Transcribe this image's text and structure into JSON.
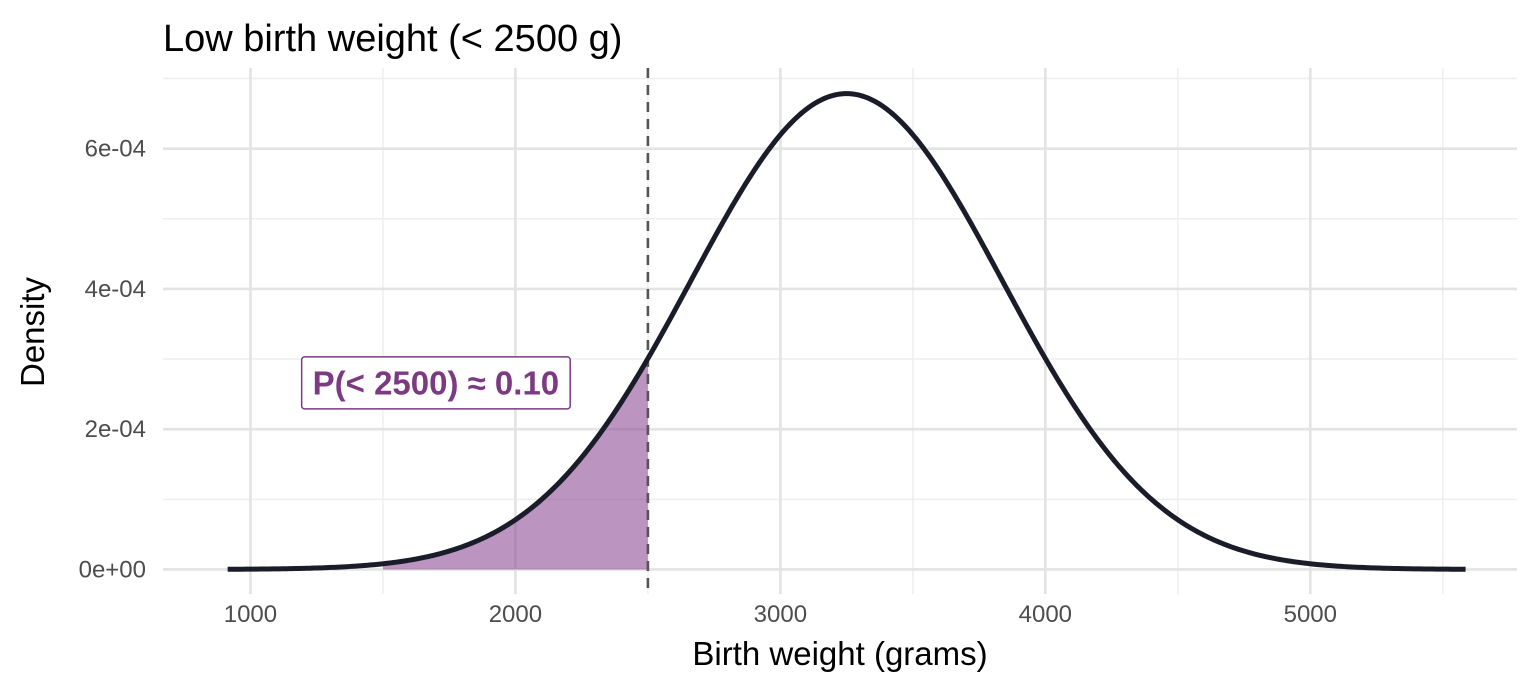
{
  "chart_data": {
    "type": "area",
    "title": "Low birth weight (< 2500 g)",
    "xlabel": "Birth weight (grams)",
    "ylabel": "Density",
    "xlim": [
      670,
      5780
    ],
    "ylim": [
      -3.5e-05,
      0.000715
    ],
    "x_ticks": [
      1000,
      2000,
      3000,
      4000,
      5000
    ],
    "x_tick_labels": [
      "1000",
      "2000",
      "3000",
      "4000",
      "5000"
    ],
    "x_minor_ticks": [
      1500,
      2500,
      3500,
      4500,
      5500
    ],
    "y_ticks": [
      0,
      0.0002,
      0.0004,
      0.0006
    ],
    "y_tick_labels": [
      "0e+00",
      "2e-04",
      "4e-04",
      "6e-04"
    ],
    "y_minor_ticks": [
      0.0001,
      0.0003,
      0.0005,
      0.0007
    ],
    "grid": true,
    "legend": "none",
    "curve": {
      "distribution": "normal",
      "mean": 3250,
      "sd": 588,
      "x_range": [
        914,
        5586
      ],
      "color": "#1a1d29"
    },
    "shaded_region": {
      "x_from": 1500,
      "x_to": 2500,
      "color": "#8e4d94",
      "opacity": 0.6
    },
    "threshold": {
      "x": 2500,
      "color": "#555555",
      "style": "dashed"
    },
    "annotation": {
      "text": "P(< 2500) ≈ 0.10",
      "x": 1700,
      "y": 0.000266,
      "color": "#7b3a82"
    }
  }
}
